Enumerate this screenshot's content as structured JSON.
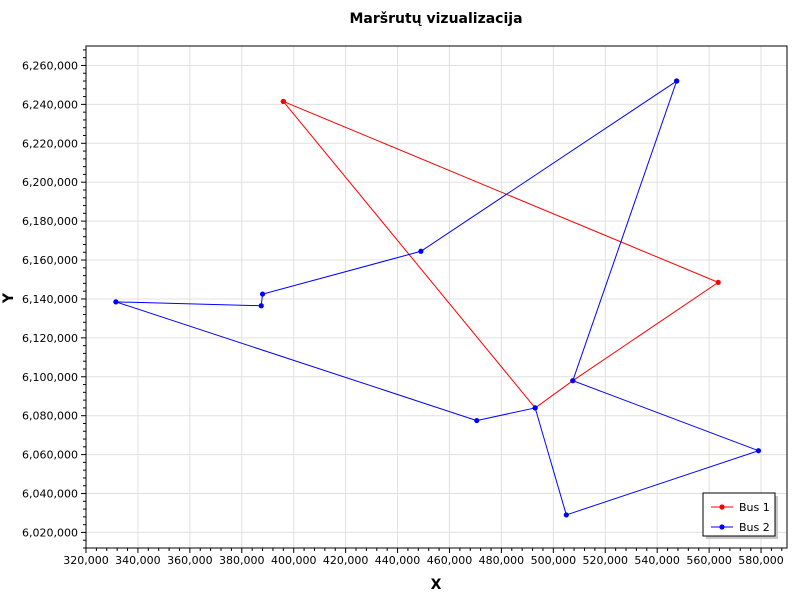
{
  "chart_data": {
    "type": "line",
    "title": "Maršrutų vizualizacija",
    "xlabel": "X",
    "ylabel": "Y",
    "xlim": [
      320000,
      590000
    ],
    "ylim": [
      6012000,
      6270000
    ],
    "x_ticks": [
      320000,
      340000,
      360000,
      380000,
      400000,
      420000,
      440000,
      460000,
      480000,
      500000,
      520000,
      540000,
      560000,
      580000
    ],
    "y_ticks": [
      6020000,
      6040000,
      6060000,
      6080000,
      6100000,
      6120000,
      6140000,
      6160000,
      6180000,
      6200000,
      6220000,
      6240000,
      6260000
    ],
    "x_tick_labels": [
      "320,000",
      "340,000",
      "360,000",
      "380,000",
      "400,000",
      "420,000",
      "440,000",
      "460,000",
      "480,000",
      "500,000",
      "520,000",
      "540,000",
      "560,000",
      "580,000"
    ],
    "y_tick_labels": [
      "6,020,000",
      "6,040,000",
      "6,060,000",
      "6,080,000",
      "6,100,000",
      "6,120,000",
      "6,140,000",
      "6,160,000",
      "6,180,000",
      "6,200,000",
      "6,220,000",
      "6,240,000",
      "6,260,000"
    ],
    "grid": true,
    "legend_position": "bottom-right",
    "series": [
      {
        "name": "Bus 1",
        "color": "#ff0000",
        "points": [
          [
            396000,
            6241500
          ],
          [
            563500,
            6148500
          ],
          [
            507500,
            6098000
          ],
          [
            493000,
            6084000
          ],
          [
            396000,
            6241500
          ]
        ]
      },
      {
        "name": "Bus 2",
        "color": "#0000ff",
        "points": [
          [
            547500,
            6252000
          ],
          [
            507500,
            6098000
          ],
          [
            579000,
            6062000
          ],
          [
            505000,
            6029000
          ],
          [
            493000,
            6084000
          ],
          [
            470500,
            6077500
          ],
          [
            331500,
            6138500
          ],
          [
            387500,
            6136500
          ],
          [
            388000,
            6142500
          ],
          [
            449000,
            6164500
          ],
          [
            547500,
            6252000
          ]
        ]
      }
    ]
  }
}
